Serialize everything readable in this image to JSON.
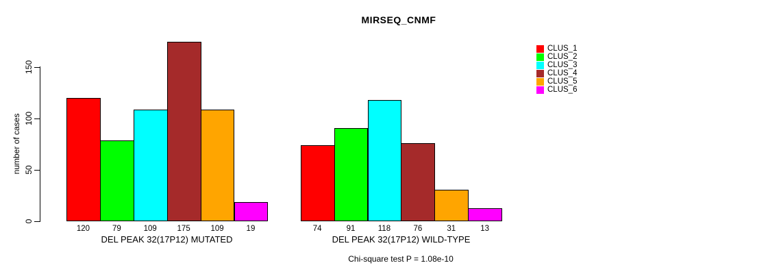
{
  "title": "MIRSEQ_CNMF",
  "chart_data": {
    "type": "bar",
    "title": "MIRSEQ_CNMF",
    "ylabel": "number of cases",
    "xlabel": "",
    "yticks": [
      0,
      50,
      100,
      150
    ],
    "ylim": [
      0,
      180
    ],
    "grid": false,
    "legend_position": "right",
    "clusters": [
      {
        "name": "CLUS_1",
        "color": "#FF0000"
      },
      {
        "name": "CLUS_2",
        "color": "#00FF00"
      },
      {
        "name": "CLUS_3",
        "color": "#00FFFF"
      },
      {
        "name": "CLUS_4",
        "color": "#A52A2A"
      },
      {
        "name": "CLUS_5",
        "color": "#FFA500"
      },
      {
        "name": "CLUS_6",
        "color": "#FF00FF"
      }
    ],
    "groups": [
      {
        "label": "DEL PEAK 32(17P12) MUTATED",
        "values": [
          120,
          79,
          109,
          175,
          109,
          19
        ]
      },
      {
        "label": "DEL PEAK 32(17P12) WILD-TYPE",
        "values": [
          74,
          91,
          118,
          76,
          31,
          13
        ]
      }
    ],
    "footnote": "Chi-square test P = 1.08e-10"
  }
}
